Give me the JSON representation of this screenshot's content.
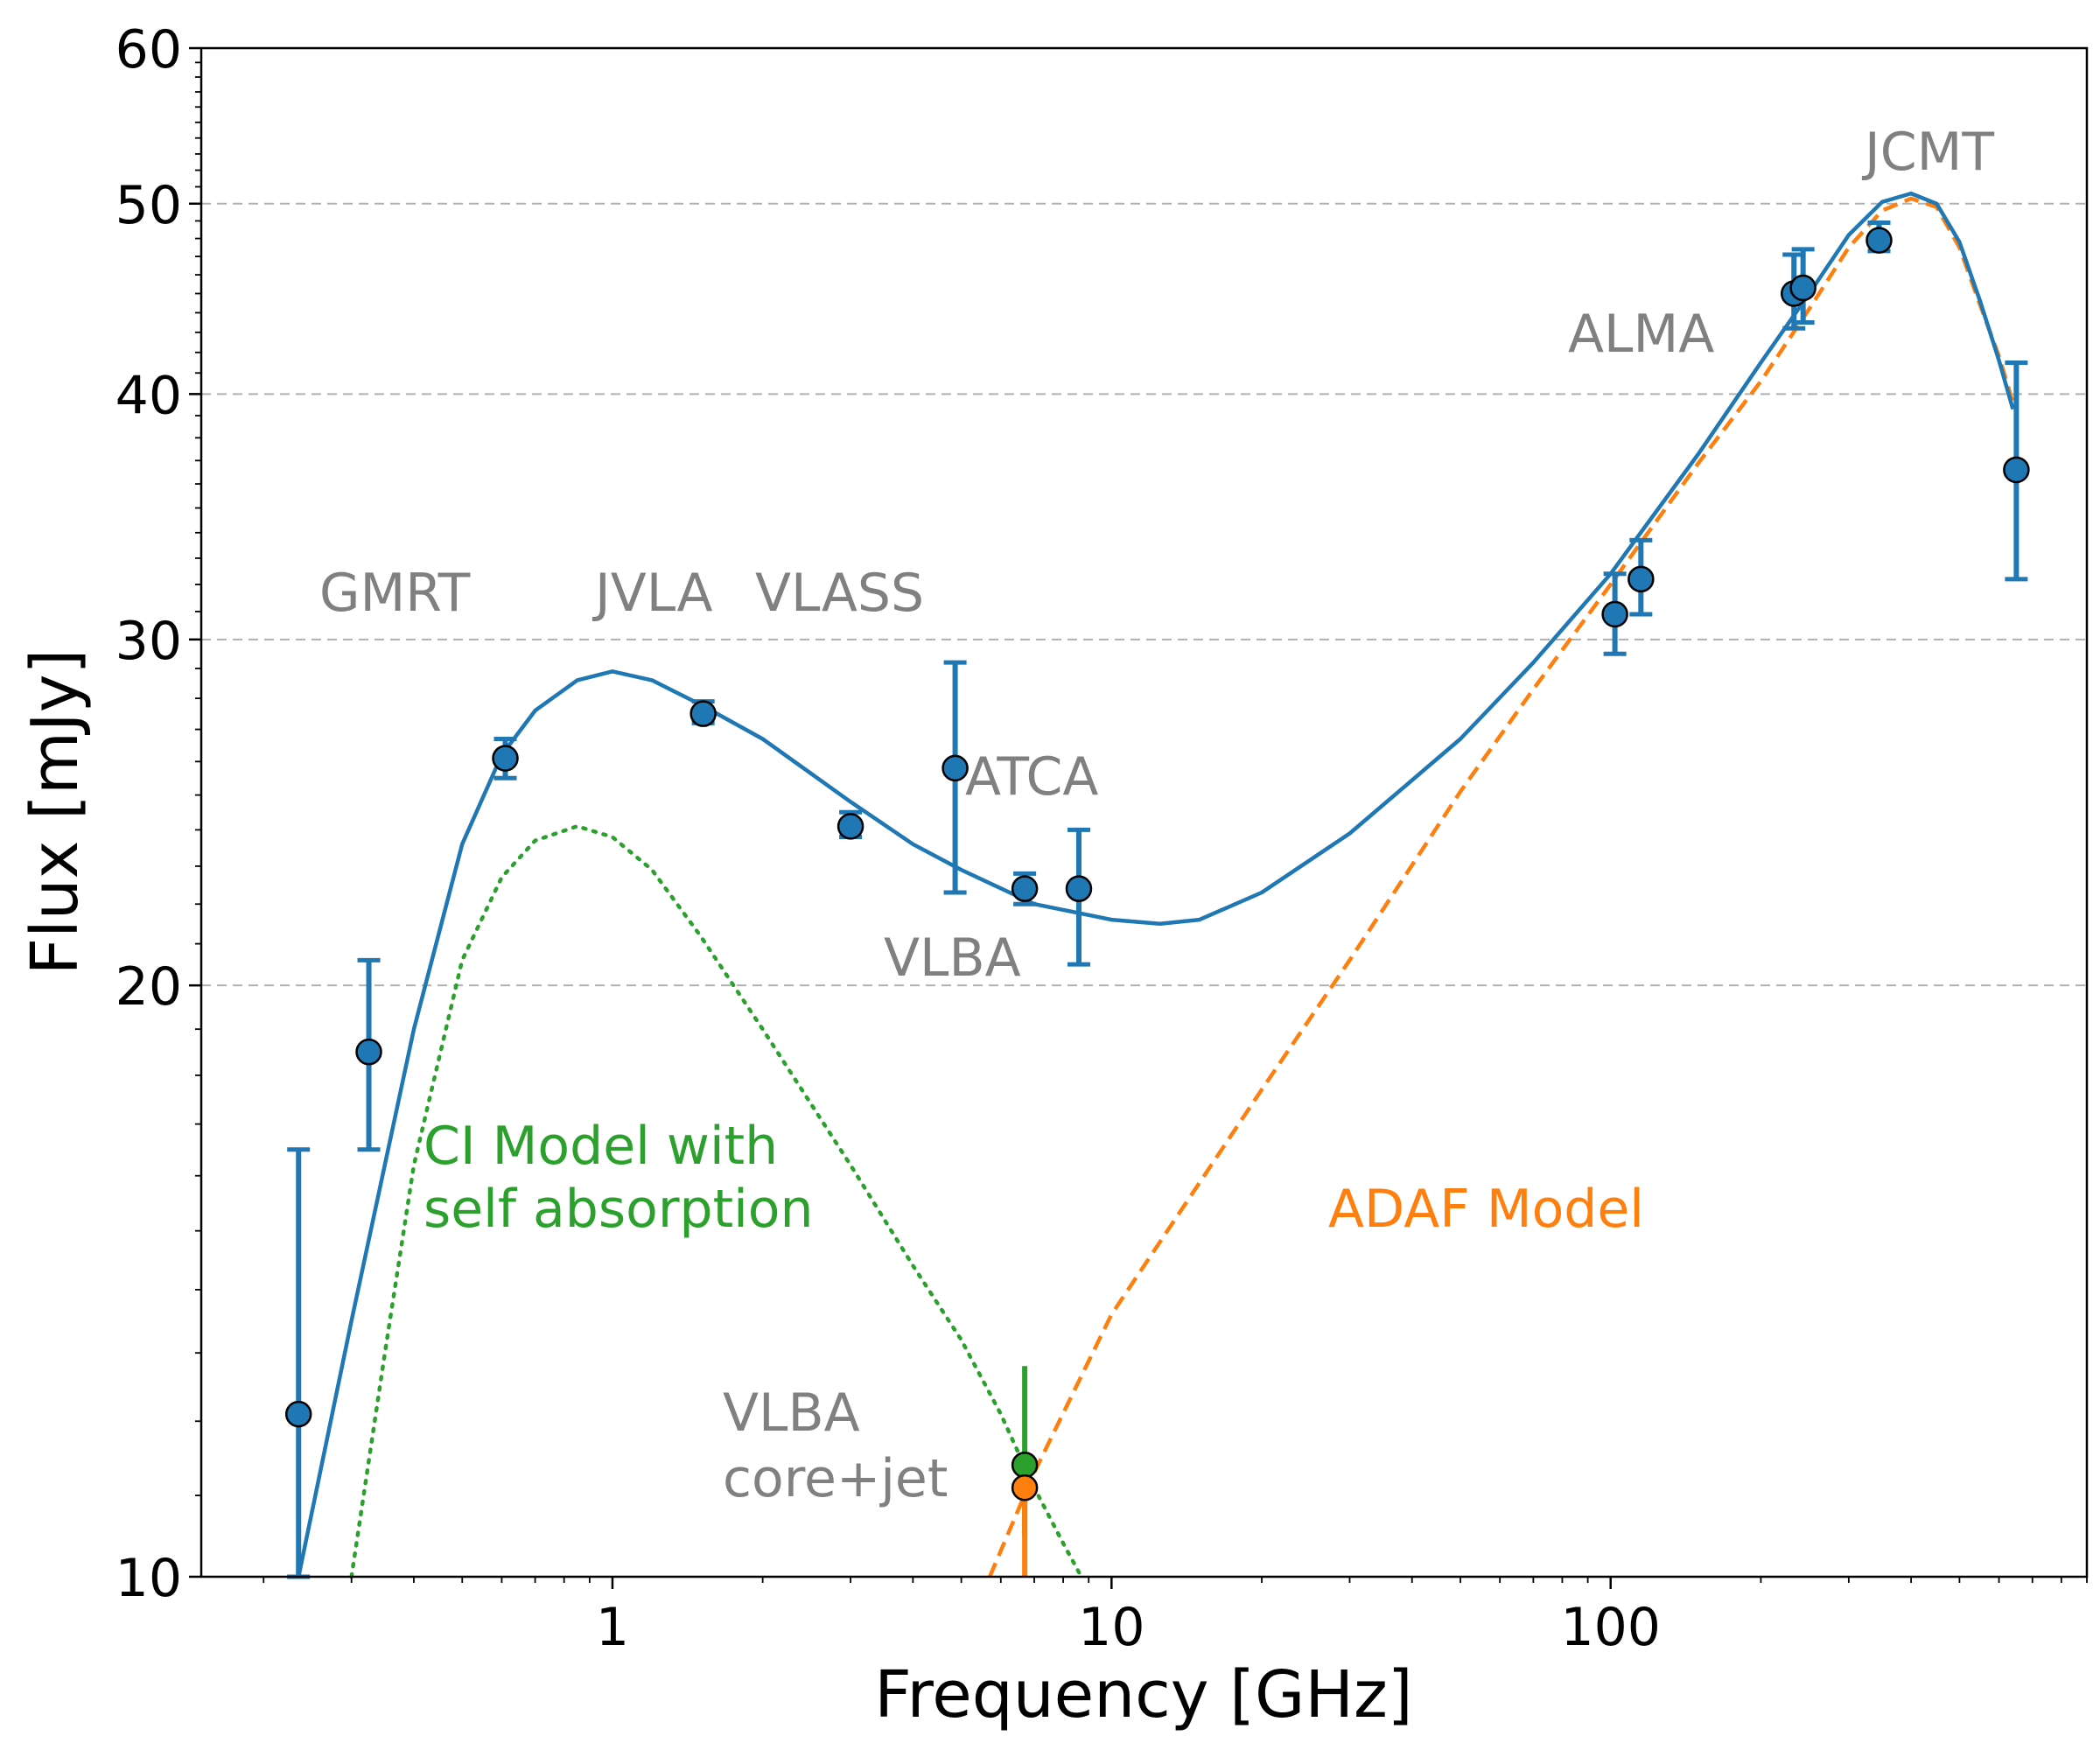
{
  "chart_data": {
    "type": "scatter",
    "xlabel": "Frequency [GHz]",
    "ylabel": "Flux [mJy]",
    "xscale": "log",
    "yscale": "log",
    "xlim": [
      0.15,
      900
    ],
    "ylim": [
      10,
      60
    ],
    "x_ticks": [
      {
        "value": 1,
        "label": "1"
      },
      {
        "value": 10,
        "label": "10"
      },
      {
        "value": 100,
        "label": "100"
      }
    ],
    "y_ticks": [
      {
        "value": 10,
        "label": "10"
      },
      {
        "value": 20,
        "label": "20"
      },
      {
        "value": 30,
        "label": "30"
      },
      {
        "value": 40,
        "label": "40"
      },
      {
        "value": 50,
        "label": "50"
      },
      {
        "value": 60,
        "label": "60"
      }
    ],
    "y_gridlines": [
      20,
      30,
      40,
      50
    ],
    "colors": {
      "data": "#1f77b4",
      "total_model": "#1f77b4",
      "ci_model": "#2ca02c",
      "adaf_model": "#ff7f0e",
      "annotation": "#808080",
      "grid": "#b0b0b0"
    },
    "points": [
      {
        "x": 0.235,
        "y": 12.1,
        "yerr_low": 10.0,
        "yerr_high": 16.5
      },
      {
        "x": 0.325,
        "y": 18.5,
        "yerr_low": 16.5,
        "yerr_high": 20.6
      },
      {
        "x": 0.61,
        "y": 26.1,
        "yerr_low": 25.5,
        "yerr_high": 26.7
      },
      {
        "x": 1.52,
        "y": 27.5,
        "yerr_low": 27.2,
        "yerr_high": 27.9
      },
      {
        "x": 3.0,
        "y": 24.1,
        "yerr_low": 23.8,
        "yerr_high": 24.5
      },
      {
        "x": 4.86,
        "y": 25.8,
        "yerr_low": 22.3,
        "yerr_high": 29.2
      },
      {
        "x": 6.7,
        "y": 22.4,
        "yerr_low": 22.0,
        "yerr_high": 22.8
      },
      {
        "x": 8.6,
        "y": 22.4,
        "yerr_low": 20.5,
        "yerr_high": 24.0
      },
      {
        "x": 102,
        "y": 30.9,
        "yerr_low": 29.5,
        "yerr_high": 32.4
      },
      {
        "x": 115,
        "y": 32.2,
        "yerr_low": 30.9,
        "yerr_high": 33.7
      },
      {
        "x": 233,
        "y": 45.0,
        "yerr_low": 43.2,
        "yerr_high": 47.1
      },
      {
        "x": 243,
        "y": 45.3,
        "yerr_low": 43.5,
        "yerr_high": 47.4
      },
      {
        "x": 345,
        "y": 47.9,
        "yerr_low": 47.3,
        "yerr_high": 48.9
      },
      {
        "x": 650,
        "y": 36.6,
        "yerr_low": 32.2,
        "yerr_high": 41.5
      }
    ],
    "vlba_core_jet": [
      {
        "x": 6.7,
        "y": 11.4,
        "yerr_low": 10.5,
        "yerr_high": 12.8,
        "color": "#2ca02c"
      },
      {
        "x": 6.7,
        "y": 11.1,
        "yerr_low": 10.0,
        "yerr_high": 11.5,
        "color": "#ff7f0e"
      }
    ],
    "model_curves": {
      "total": [
        [
          0.235,
          10.0
        ],
        [
          0.3,
          13.5
        ],
        [
          0.4,
          19.0
        ],
        [
          0.5,
          23.6
        ],
        [
          0.6,
          26.2
        ],
        [
          0.7,
          27.6
        ],
        [
          0.85,
          28.6
        ],
        [
          1.0,
          28.9
        ],
        [
          1.2,
          28.6
        ],
        [
          1.5,
          27.8
        ],
        [
          2.0,
          26.7
        ],
        [
          3.0,
          24.8
        ],
        [
          4.0,
          23.6
        ],
        [
          5.0,
          22.9
        ],
        [
          7.0,
          22.0
        ],
        [
          10.0,
          21.6
        ],
        [
          12.5,
          21.5
        ],
        [
          15.0,
          21.6
        ],
        [
          20.0,
          22.3
        ],
        [
          30.0,
          23.9
        ],
        [
          50.0,
          26.7
        ],
        [
          70.0,
          29.2
        ],
        [
          100.0,
          32.4
        ],
        [
          150.0,
          37.3
        ],
        [
          200.0,
          41.5
        ],
        [
          250.0,
          45.0
        ],
        [
          300.0,
          48.2
        ],
        [
          350.0,
          50.1
        ],
        [
          400.0,
          50.6
        ],
        [
          450.0,
          50.0
        ],
        [
          500.0,
          47.8
        ],
        [
          550.0,
          44.6
        ],
        [
          600.0,
          41.6
        ],
        [
          640.0,
          39.3
        ]
      ],
      "ci": [
        [
          0.3,
          10.0
        ],
        [
          0.35,
          13.0
        ],
        [
          0.4,
          16.2
        ],
        [
          0.5,
          20.6
        ],
        [
          0.6,
          22.7
        ],
        [
          0.7,
          23.7
        ],
        [
          0.85,
          24.1
        ],
        [
          1.0,
          23.8
        ],
        [
          1.2,
          22.9
        ],
        [
          1.5,
          21.2
        ],
        [
          2.0,
          19.0
        ],
        [
          3.0,
          16.2
        ],
        [
          4.0,
          14.4
        ],
        [
          5.0,
          13.2
        ],
        [
          6.0,
          12.1
        ],
        [
          7.0,
          11.1
        ],
        [
          8.0,
          10.4
        ],
        [
          8.7,
          10.0
        ]
      ],
      "adaf": [
        [
          5.7,
          10.0
        ],
        [
          7.0,
          11.3
        ],
        [
          10.0,
          13.6
        ],
        [
          20.0,
          17.7
        ],
        [
          30.0,
          20.6
        ],
        [
          50.0,
          25.1
        ],
        [
          70.0,
          28.3
        ],
        [
          100.0,
          32.0
        ],
        [
          150.0,
          36.9
        ],
        [
          200.0,
          40.6
        ],
        [
          250.0,
          44.2
        ],
        [
          300.0,
          47.5
        ],
        [
          350.0,
          49.6
        ],
        [
          400.0,
          50.3
        ],
        [
          450.0,
          49.8
        ],
        [
          500.0,
          47.5
        ],
        [
          550.0,
          44.4
        ],
        [
          600.0,
          41.8
        ],
        [
          640.0,
          39.6
        ]
      ]
    },
    "annotations": [
      {
        "id": "gmrt",
        "text": "GMRT"
      },
      {
        "id": "jvla",
        "text": "JVLA"
      },
      {
        "id": "vlass",
        "text": "VLASS"
      },
      {
        "id": "atca",
        "text": "ATCA"
      },
      {
        "id": "vlba",
        "text": "VLBA"
      },
      {
        "id": "alma",
        "text": "ALMA"
      },
      {
        "id": "jcmt",
        "text": "JCMT"
      },
      {
        "id": "vlba-core-1",
        "text": "VLBA"
      },
      {
        "id": "vlba-core-2",
        "text": "core+jet"
      }
    ],
    "model_labels": [
      {
        "id": "ci-1",
        "text": "CI Model with",
        "color": "#2ca02c"
      },
      {
        "id": "ci-2",
        "text": "self absorption",
        "color": "#2ca02c"
      },
      {
        "id": "adaf",
        "text": "ADAF Model",
        "color": "#ff7f0e"
      }
    ]
  }
}
